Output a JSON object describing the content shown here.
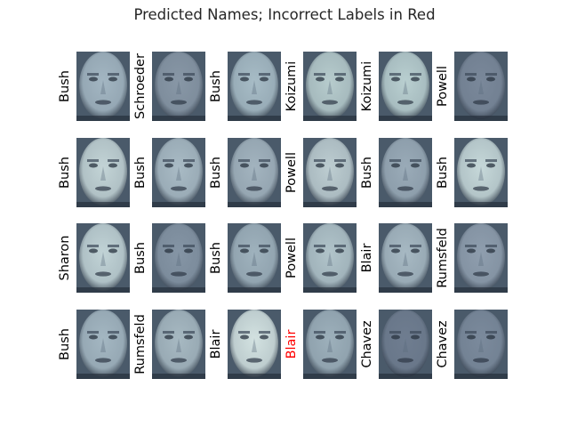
{
  "title": "Predicted Names; Incorrect Labels in Red",
  "colors": {
    "correct_label": "#000000",
    "incorrect_label": "#ff0000",
    "colormap": "bone"
  },
  "faces": [
    {
      "label": "Bush",
      "correct": true,
      "tone": "#a3b6c2"
    },
    {
      "label": "Schroeder",
      "correct": true,
      "tone": "#8897a6"
    },
    {
      "label": "Bush",
      "correct": true,
      "tone": "#a7bcc6"
    },
    {
      "label": "Koizumi",
      "correct": true,
      "tone": "#b7cccd"
    },
    {
      "label": "Koizumi",
      "correct": true,
      "tone": "#b9cfd0"
    },
    {
      "label": "Powell",
      "correct": true,
      "tone": "#7a889a"
    },
    {
      "label": "Bush",
      "correct": true,
      "tone": "#c3d4d6"
    },
    {
      "label": "Bush",
      "correct": true,
      "tone": "#a9bbc5"
    },
    {
      "label": "Bush",
      "correct": true,
      "tone": "#a3b4bf"
    },
    {
      "label": "Powell",
      "correct": true,
      "tone": "#bdcdd1"
    },
    {
      "label": "Bush",
      "correct": true,
      "tone": "#9aabb8"
    },
    {
      "label": "Bush",
      "correct": true,
      "tone": "#c6d8d9"
    },
    {
      "label": "Sharon",
      "correct": true,
      "tone": "#c1d3d6"
    },
    {
      "label": "Bush",
      "correct": true,
      "tone": "#8595a5"
    },
    {
      "label": "Bush",
      "correct": true,
      "tone": "#9fb2bd"
    },
    {
      "label": "Powell",
      "correct": true,
      "tone": "#b1c4ca"
    },
    {
      "label": "Blair",
      "correct": true,
      "tone": "#a7b9c3"
    },
    {
      "label": "Rumsfeld",
      "correct": true,
      "tone": "#8f9eae"
    },
    {
      "label": "Bush",
      "correct": true,
      "tone": "#a4b7c2"
    },
    {
      "label": "Rumsfeld",
      "correct": true,
      "tone": "#a7b9c2"
    },
    {
      "label": "Blair",
      "correct": true,
      "tone": "#d3e2e1"
    },
    {
      "label": "Blair",
      "correct": false,
      "tone": "#9db0bb"
    },
    {
      "label": "Chavez",
      "correct": true,
      "tone": "#6f7d90"
    },
    {
      "label": "Chavez",
      "correct": true,
      "tone": "#7b8a9c"
    }
  ]
}
